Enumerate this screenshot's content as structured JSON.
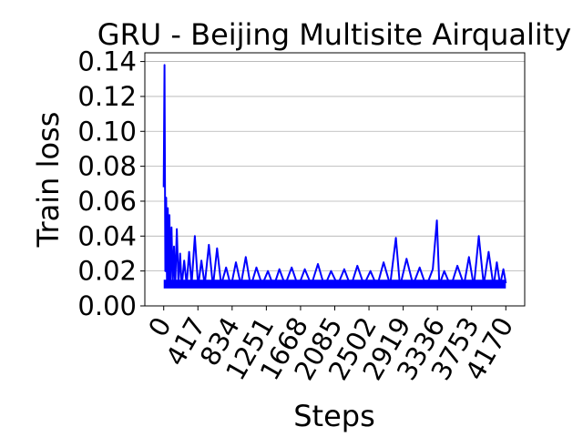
{
  "chart_data": {
    "type": "line",
    "title": "GRU - Beijing Multisite Airquality",
    "xlabel": "Steps",
    "ylabel": "Train loss",
    "xlim": [
      -230,
      4400
    ],
    "ylim": [
      0,
      0.145
    ],
    "x_ticks": [
      0,
      417,
      834,
      1251,
      1668,
      2085,
      2502,
      2919,
      3336,
      3753,
      4170
    ],
    "y_ticks": [
      0.0,
      0.02,
      0.04,
      0.06,
      0.08,
      0.1,
      0.12,
      0.14
    ],
    "x_tick_labels": [
      "0",
      "417",
      "834",
      "1251",
      "1668",
      "2085",
      "2502",
      "2919",
      "3336",
      "3753",
      "4170"
    ],
    "y_tick_labels": [
      "0.00",
      "0.02",
      "0.04",
      "0.06",
      "0.08",
      "0.10",
      "0.12",
      "0.14"
    ],
    "grid": "y-major",
    "color": "#0000ff",
    "series": [
      {
        "x": [
          0,
          10,
          20,
          30,
          40,
          50,
          60,
          70,
          80,
          95,
          110,
          125,
          140,
          160,
          180,
          200,
          220,
          250,
          280,
          310,
          340,
          380,
          420,
          460,
          500,
          550,
          600,
          650,
          700,
          760,
          820,
          880,
          940,
          1000,
          1060,
          1130,
          1200,
          1270,
          1340,
          1410,
          1480,
          1560,
          1640,
          1720,
          1800,
          1880,
          1960,
          2040,
          2120,
          2200,
          2280,
          2360,
          2440,
          2520,
          2600,
          2680,
          2760,
          2830,
          2880,
          2960,
          3040,
          3120,
          3200,
          3280,
          3330,
          3360,
          3420,
          3500,
          3580,
          3660,
          3720,
          3780,
          3840,
          3900,
          3960,
          4020,
          4060,
          4100,
          4140,
          4170
        ],
        "y": [
          0.068,
          0.138,
          0.02,
          0.062,
          0.013,
          0.056,
          0.012,
          0.052,
          0.011,
          0.045,
          0.012,
          0.034,
          0.011,
          0.044,
          0.012,
          0.03,
          0.011,
          0.026,
          0.012,
          0.031,
          0.012,
          0.04,
          0.011,
          0.026,
          0.012,
          0.035,
          0.011,
          0.033,
          0.012,
          0.022,
          0.011,
          0.025,
          0.012,
          0.028,
          0.011,
          0.022,
          0.012,
          0.02,
          0.011,
          0.021,
          0.012,
          0.022,
          0.011,
          0.021,
          0.012,
          0.024,
          0.011,
          0.02,
          0.012,
          0.021,
          0.011,
          0.023,
          0.012,
          0.02,
          0.011,
          0.025,
          0.012,
          0.039,
          0.011,
          0.027,
          0.012,
          0.022,
          0.011,
          0.021,
          0.049,
          0.012,
          0.02,
          0.011,
          0.023,
          0.012,
          0.028,
          0.011,
          0.04,
          0.012,
          0.031,
          0.011,
          0.025,
          0.012,
          0.021,
          0.013
        ]
      }
    ]
  }
}
